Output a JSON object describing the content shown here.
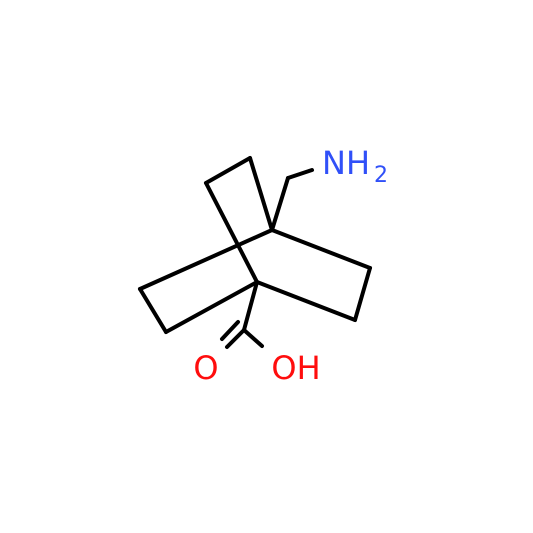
{
  "labels": {
    "amine": "NH",
    "amine_subscript": "2",
    "carbonyl_oxygen": "O",
    "hydroxyl": "OH"
  }
}
